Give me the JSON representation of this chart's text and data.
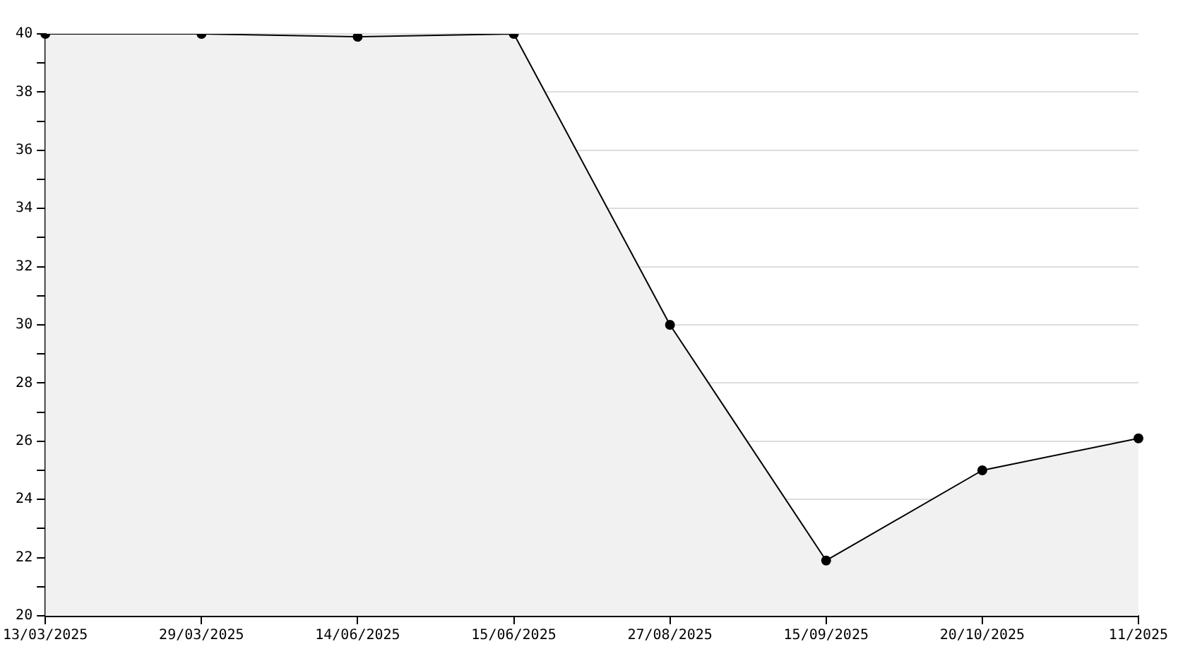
{
  "chart_data": {
    "type": "area",
    "categories": [
      "13/03/2025",
      "29/03/2025",
      "14/06/2025",
      "15/06/2025",
      "27/08/2025",
      "15/09/2025",
      "20/10/2025",
      "11/2025"
    ],
    "series": [
      {
        "color": "#000000",
        "values": [
          40,
          40,
          39.9,
          40,
          30,
          21.9,
          25,
          26.1
        ]
      }
    ],
    "ylim": [
      20,
      40
    ],
    "yticks": [
      20,
      {
        "value": 21,
        "label": null
      },
      22,
      {
        "value": 23,
        "label": null
      },
      24,
      {
        "value": 25,
        "label": null
      },
      26,
      {
        "value": 27,
        "label": null
      },
      28,
      {
        "value": 29,
        "label": null
      },
      30,
      {
        "value": 31,
        "label": null
      },
      32,
      {
        "value": 33,
        "label": null
      },
      34,
      {
        "value": 35,
        "label": null
      },
      36,
      {
        "value": 37,
        "label": null
      },
      38,
      {
        "value": 39,
        "label": null
      },
      40
    ],
    "grid": "y",
    "legend": false,
    "marker": "circle",
    "line_style": "solid"
  }
}
